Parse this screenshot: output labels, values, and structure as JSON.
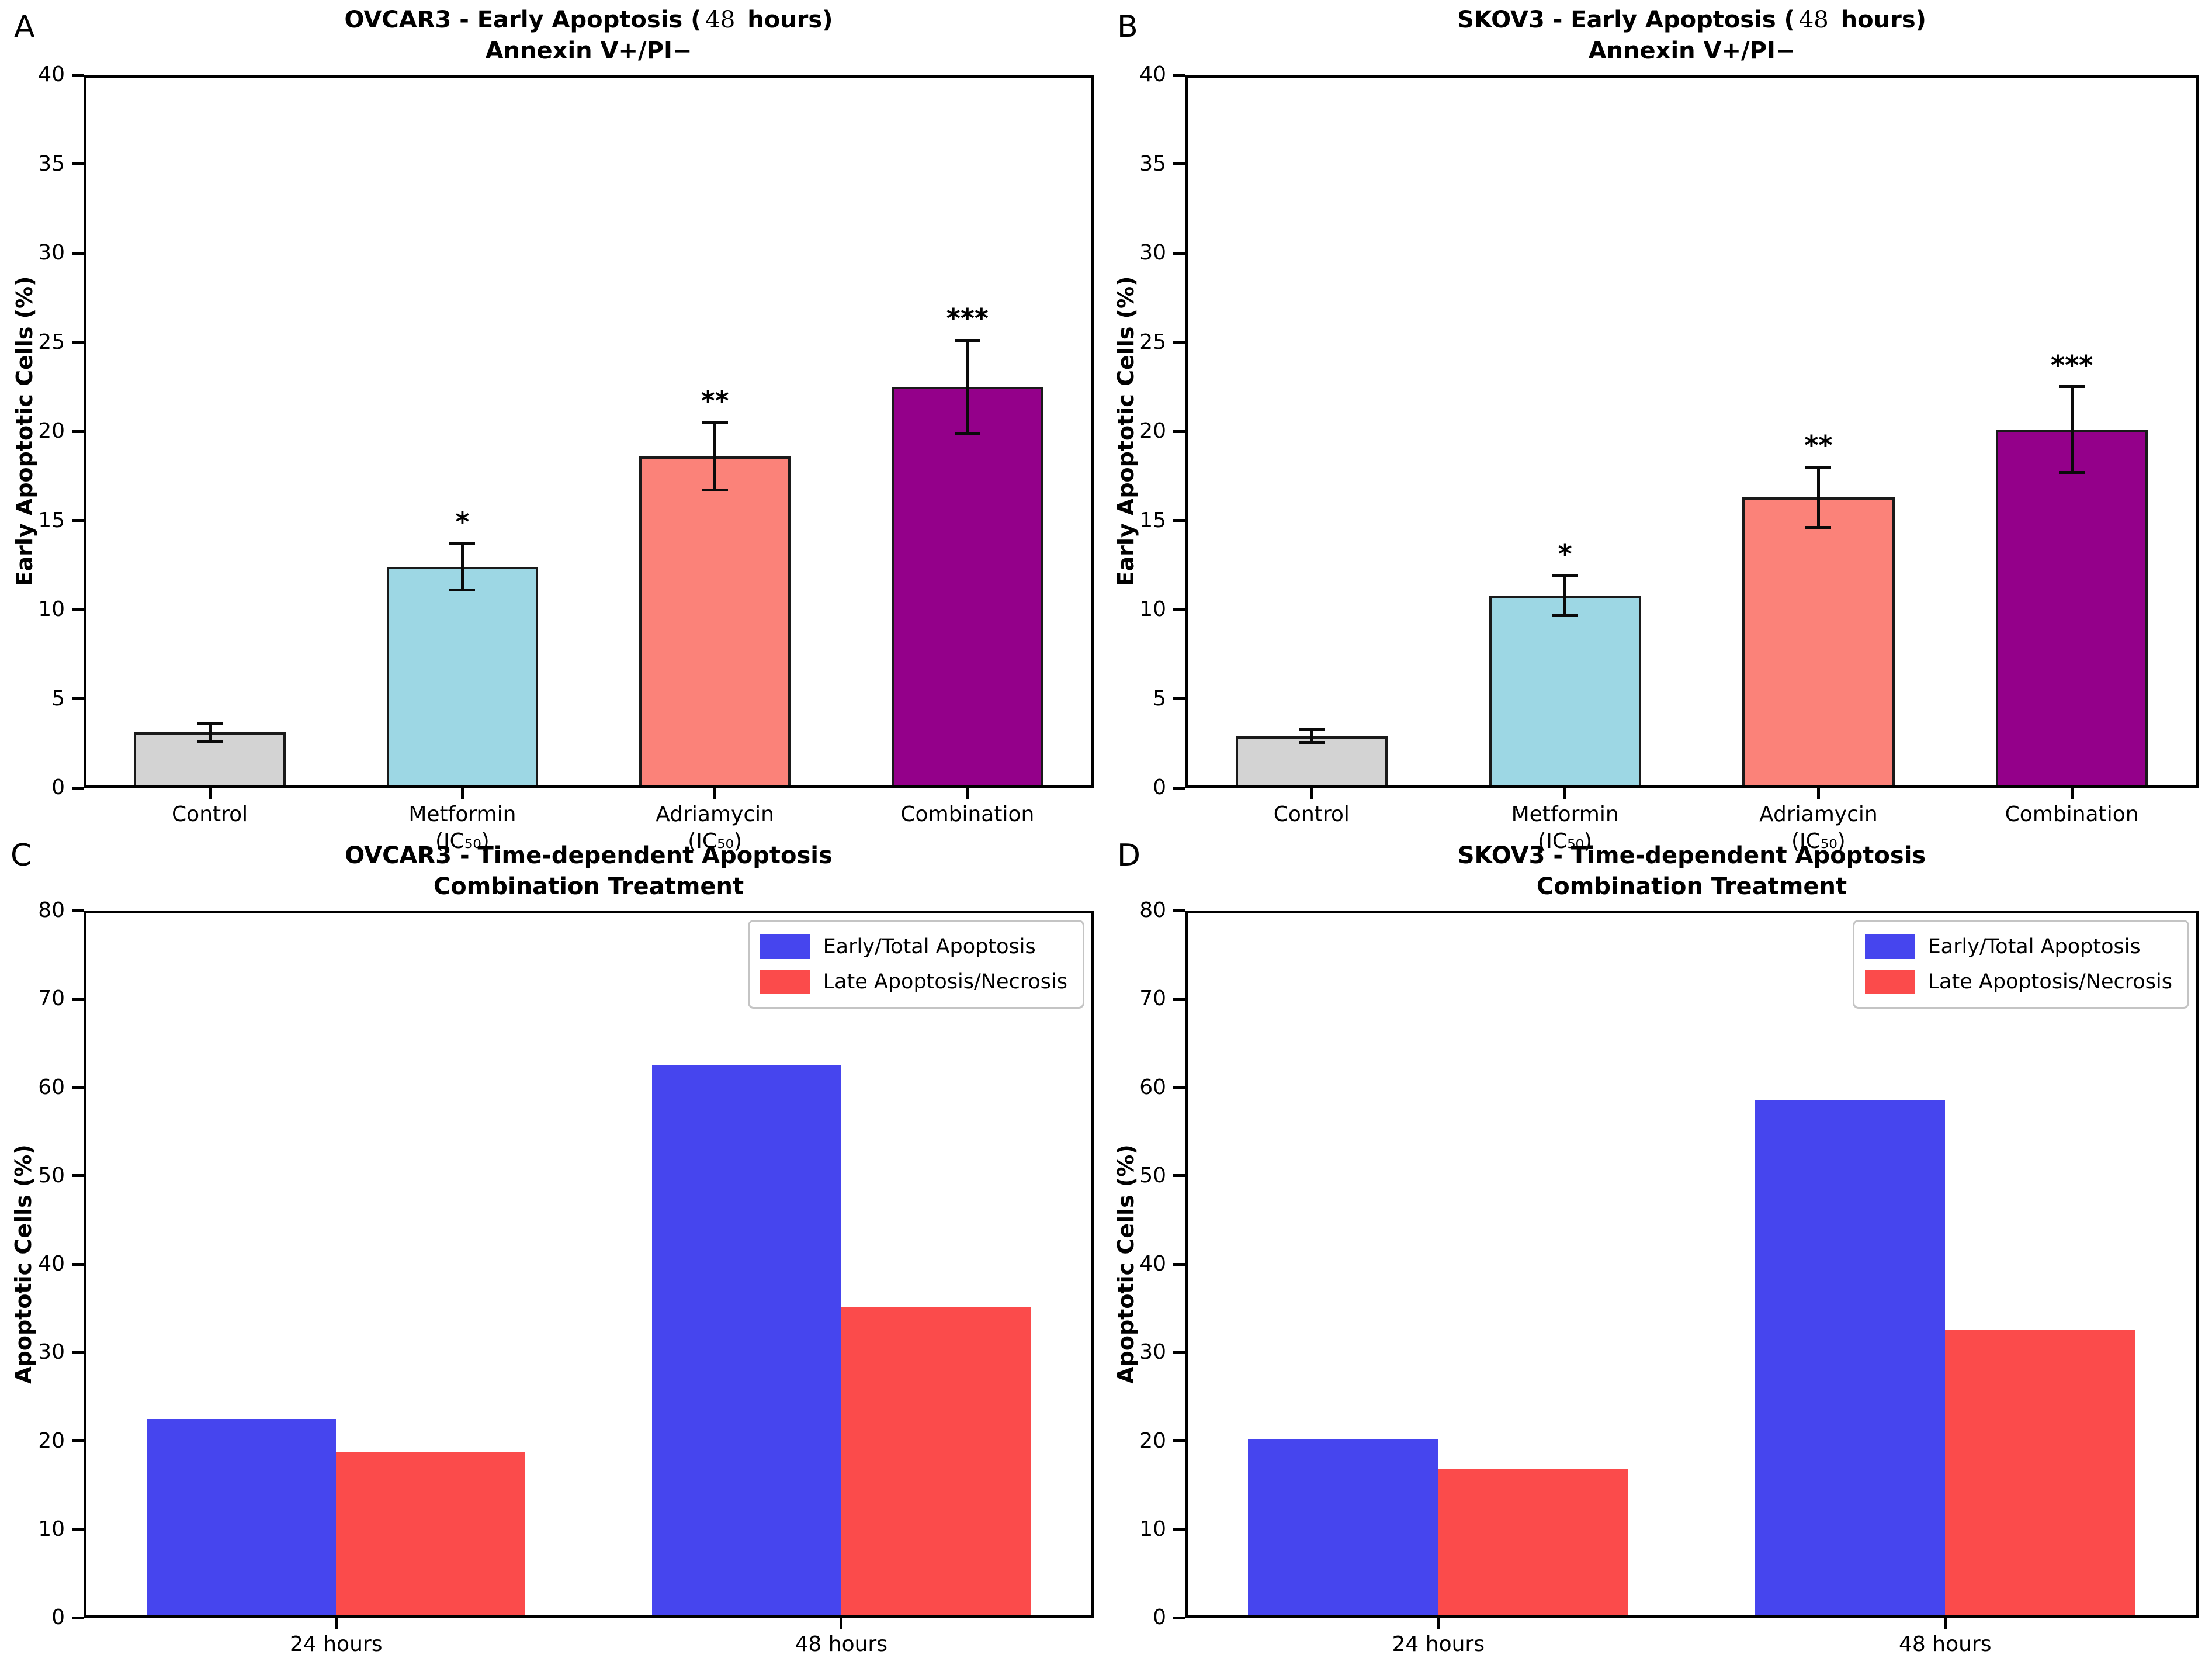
{
  "figure": {
    "background": "#ffffff",
    "axis_color": "#000000",
    "error_bar_color": "#0a0a0a",
    "bar_edge_color": "#1a1a1a"
  },
  "chart_data": [
    {
      "panel_label": "A",
      "type": "bar",
      "title_parts": [
        {
          "t": "OVCAR3 - Early Apoptosis ("
        },
        {
          "t": "48",
          "math": true
        },
        {
          "t": " hours)"
        }
      ],
      "subtitle": "Annexin V+/PI−",
      "ylabel": "Early Apoptotic Cells (%)",
      "xlabel": "",
      "ylim": [
        0,
        40
      ],
      "yticks": [
        "0",
        "5",
        "10",
        "15",
        "20",
        "25",
        "30",
        "35",
        "40"
      ],
      "categories": [
        [
          "Control"
        ],
        [
          "Metformin",
          "(IC₅₀)"
        ],
        [
          "Adriamycin",
          "(IC₅₀)"
        ],
        [
          "Combination"
        ]
      ],
      "values": [
        3.1,
        12.4,
        18.6,
        22.5
      ],
      "errors": [
        0.5,
        1.3,
        1.9,
        2.6
      ],
      "significance": [
        "",
        "*",
        "**",
        "***"
      ],
      "bar_colors": [
        "#d3d3d3",
        "#9dd7e4",
        "#fb8279",
        "#94008a"
      ],
      "grid": false,
      "legend": null
    },
    {
      "panel_label": "B",
      "type": "bar",
      "title_parts": [
        {
          "t": "SKOV3 - Early Apoptosis ("
        },
        {
          "t": "48",
          "math": true
        },
        {
          "t": " hours)"
        }
      ],
      "subtitle": "Annexin V+/PI−",
      "ylabel": "Early Apoptotic Cells (%)",
      "xlabel": "",
      "ylim": [
        0,
        40
      ],
      "yticks": [
        "0",
        "5",
        "10",
        "15",
        "20",
        "25",
        "30",
        "35",
        "40"
      ],
      "categories": [
        [
          "Control"
        ],
        [
          "Metformin",
          "(IC₅₀)"
        ],
        [
          "Adriamycin",
          "(IC₅₀)"
        ],
        [
          "Combination"
        ]
      ],
      "values": [
        2.9,
        10.8,
        16.3,
        20.1
      ],
      "errors": [
        0.35,
        1.1,
        1.7,
        2.4
      ],
      "significance": [
        "",
        "*",
        "**",
        "***"
      ],
      "bar_colors": [
        "#d3d3d3",
        "#9dd7e4",
        "#fb8279",
        "#94008a"
      ],
      "grid": false,
      "legend": null
    },
    {
      "panel_label": "C",
      "type": "bar",
      "title_parts": [
        {
          "t": "OVCAR3 - Time-dependent Apoptosis"
        }
      ],
      "subtitle": "Combination Treatment",
      "ylabel": "Apoptotic Cells (%)",
      "xlabel": "",
      "ylim": [
        0,
        80
      ],
      "yticks": [
        "0",
        "10",
        "20",
        "30",
        "40",
        "50",
        "60",
        "70",
        "80"
      ],
      "categories": [
        [
          "24 hours"
        ],
        [
          "48 hours"
        ]
      ],
      "series": [
        {
          "name": "Early/Total Apoptosis",
          "color": "#4645ee",
          "values": [
            22.5,
            62.5
          ]
        },
        {
          "name": "Late Apoptosis/Necrosis",
          "color": "#fb4b4b",
          "values": [
            18.8,
            35.2
          ]
        }
      ],
      "grid": false,
      "legend": {
        "position": "upper-right"
      }
    },
    {
      "panel_label": "D",
      "type": "bar",
      "title_parts": [
        {
          "t": "SKOV3 - Time-dependent Apoptosis"
        }
      ],
      "subtitle": "Combination Treatment",
      "ylabel": "Apoptotic Cells (%)",
      "xlabel": "",
      "ylim": [
        0,
        80
      ],
      "yticks": [
        "0",
        "10",
        "20",
        "30",
        "40",
        "50",
        "60",
        "70",
        "80"
      ],
      "categories": [
        [
          "24 hours"
        ],
        [
          "48 hours"
        ]
      ],
      "series": [
        {
          "name": "Early/Total Apoptosis",
          "color": "#4645ee",
          "values": [
            20.2,
            58.5
          ]
        },
        {
          "name": "Late Apoptosis/Necrosis",
          "color": "#fb4b4b",
          "values": [
            16.8,
            32.6
          ]
        }
      ],
      "grid": false,
      "legend": {
        "position": "upper-right"
      }
    }
  ]
}
